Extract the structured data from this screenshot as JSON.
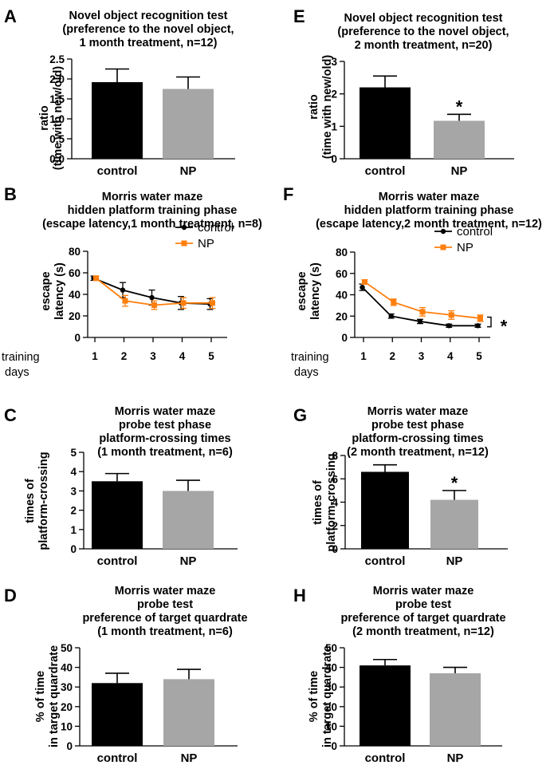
{
  "figure_name": "novel-object-and-morris-water-maze-figure",
  "colors": {
    "control": "#000000",
    "np_bar": "#a6a6a6",
    "np_line": "#ff7f0e"
  },
  "chart_data": [
    {
      "panel": "A",
      "type": "bar",
      "title": [
        "Novel object recognition test",
        "(preference to the novel object,",
        "1 month treatment, n=12)"
      ],
      "ylabel": [
        "ratio",
        "(time with new/old)"
      ],
      "categories": [
        "control",
        "NP"
      ],
      "values": [
        1.92,
        1.75
      ],
      "errors": [
        0.33,
        0.3
      ],
      "ylim": [
        0,
        2.5
      ],
      "yticks": [
        "0.0",
        "0.5",
        "1.0",
        "1.5",
        "2.0",
        "2.5"
      ],
      "significance": [
        "",
        ""
      ]
    },
    {
      "panel": "E",
      "type": "bar",
      "title": [
        "Novel object recognition test",
        "(preference to the novel object,",
        "2 month treatment, n=20)"
      ],
      "ylabel": [
        "ratio",
        "(time with new/old)"
      ],
      "categories": [
        "control",
        "NP"
      ],
      "values": [
        2.2,
        1.17
      ],
      "errors": [
        0.35,
        0.2
      ],
      "ylim": [
        0,
        3
      ],
      "yticks": [
        "0",
        "1",
        "2",
        "3"
      ],
      "significance": [
        "",
        "*"
      ]
    },
    {
      "panel": "B",
      "type": "line",
      "title": [
        "Morris water maze",
        "hidden platform training phase",
        "(escape latency,1 month treatment, n=8)"
      ],
      "ylabel": [
        "escape",
        "latency (s)"
      ],
      "xlabel": [
        "training",
        "days"
      ],
      "x": [
        1,
        2,
        3,
        4,
        5
      ],
      "xticks": [
        "1",
        "2",
        "3",
        "4",
        "5"
      ],
      "ylim": [
        0,
        80
      ],
      "yticks": [
        "0",
        "20",
        "40",
        "60",
        "80"
      ],
      "series": [
        {
          "name": "control",
          "values": [
            55,
            44,
            37,
            32,
            31
          ],
          "errors": [
            2,
            7,
            7,
            6,
            5
          ]
        },
        {
          "name": "NP",
          "values": [
            55,
            34,
            30,
            32,
            32
          ],
          "errors": [
            2,
            5,
            4,
            5,
            5
          ]
        }
      ],
      "legend": "top-right",
      "significance": ""
    },
    {
      "panel": "F",
      "type": "line",
      "title": [
        "Morris water maze",
        "hidden platform training phase",
        "(escape latency,2 month treatment, n=12)"
      ],
      "ylabel": [
        "escape",
        "latency (s)"
      ],
      "xlabel": [
        "training",
        "days"
      ],
      "x": [
        1,
        2,
        3,
        4,
        5
      ],
      "xticks": [
        "1",
        "2",
        "3",
        "4",
        "5"
      ],
      "ylim": [
        0,
        80
      ],
      "yticks": [
        "0",
        "20",
        "40",
        "60",
        "80"
      ],
      "series": [
        {
          "name": "control",
          "values": [
            47,
            20,
            15,
            11,
            11
          ],
          "errors": [
            3,
            2,
            2,
            1.5,
            1.5
          ]
        },
        {
          "name": "NP",
          "values": [
            52,
            33,
            24,
            21,
            18
          ],
          "errors": [
            2,
            3,
            4,
            4,
            3
          ]
        }
      ],
      "legend": "top-right",
      "significance": "*"
    },
    {
      "panel": "C",
      "type": "bar",
      "title": [
        "Morris water maze",
        "probe test phase",
        "platform-crossing times",
        "(1 month treatment, n=6)"
      ],
      "ylabel": [
        "times of",
        "platform-crossing"
      ],
      "categories": [
        "control",
        "NP"
      ],
      "values": [
        3.5,
        3.0
      ],
      "errors": [
        0.4,
        0.55
      ],
      "ylim": [
        0,
        5
      ],
      "yticks": [
        "0",
        "1",
        "2",
        "3",
        "4",
        "5"
      ],
      "significance": [
        "",
        ""
      ]
    },
    {
      "panel": "G",
      "type": "bar",
      "title": [
        "Morris water maze",
        "probe test phase",
        "platform-crossing times",
        "(2 month treatment, n=12)"
      ],
      "ylabel": [
        "times of",
        "platform-crossing"
      ],
      "categories": [
        "control",
        "NP"
      ],
      "values": [
        6.6,
        4.2
      ],
      "errors": [
        0.6,
        0.8
      ],
      "ylim": [
        0,
        8
      ],
      "yticks": [
        "0",
        "2",
        "4",
        "6",
        "8"
      ],
      "significance": [
        "",
        "*"
      ]
    },
    {
      "panel": "D",
      "type": "bar",
      "title": [
        "Morris water maze",
        "probe test",
        "preference of target quardrate",
        "(1 month treatment, n=6)"
      ],
      "ylabel": [
        "% of time",
        "in target quardrate"
      ],
      "categories": [
        "control",
        "NP"
      ],
      "values": [
        32,
        34
      ],
      "errors": [
        5,
        5
      ],
      "ylim": [
        0,
        50
      ],
      "yticks": [
        "0",
        "10",
        "20",
        "30",
        "40",
        "50"
      ],
      "significance": [
        "",
        ""
      ]
    },
    {
      "panel": "H",
      "type": "bar",
      "title": [
        "Morris water maze",
        "probe test",
        "preference of target quardrate",
        "(2 month treatment, n=12)"
      ],
      "ylabel": [
        "% of time",
        "in target quardrate"
      ],
      "categories": [
        "control",
        "NP"
      ],
      "values": [
        41,
        37
      ],
      "errors": [
        3,
        3
      ],
      "ylim": [
        0,
        50
      ],
      "yticks": [
        "0",
        "10",
        "20",
        "30",
        "40",
        "50"
      ],
      "significance": [
        "",
        ""
      ]
    }
  ]
}
